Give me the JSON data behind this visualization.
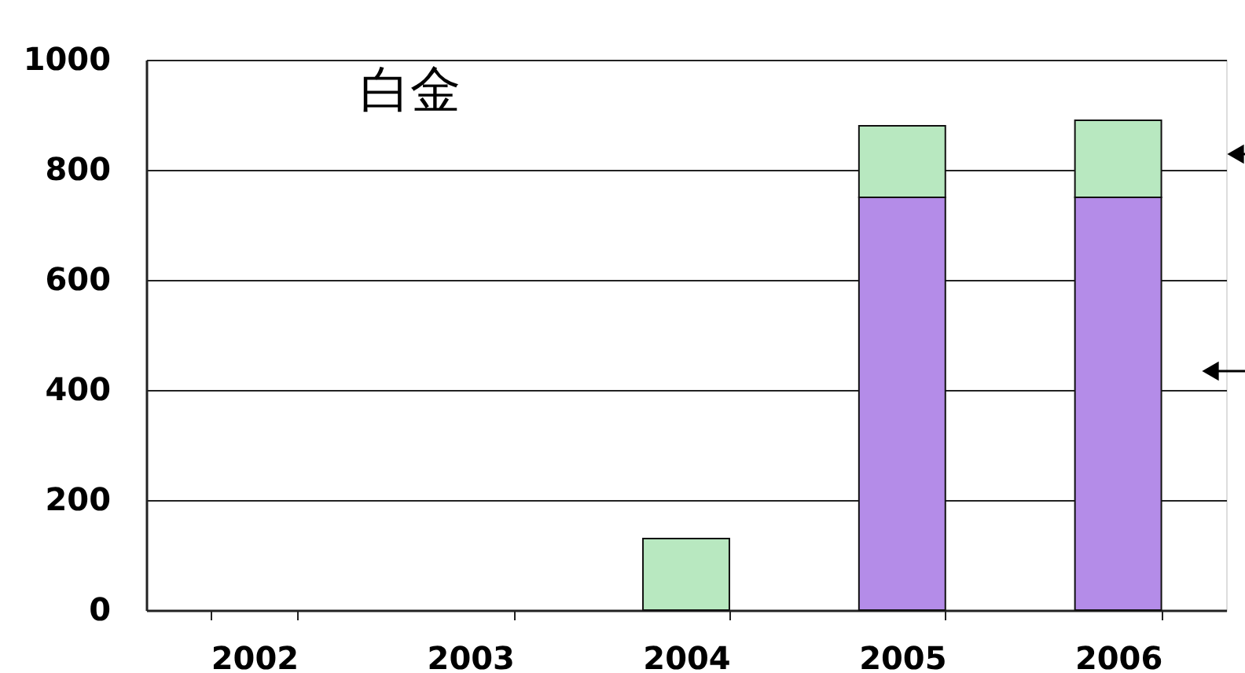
{
  "chart_data": {
    "type": "bar",
    "title": "白金",
    "categories": [
      "2002",
      "2003",
      "2004",
      "2005",
      "2006"
    ],
    "stacked": true,
    "series": [
      {
        "color": "#b48ce8",
        "values": [
          null,
          null,
          null,
          750,
          750
        ]
      },
      {
        "color": "#b8e8c0",
        "values": [
          null,
          null,
          130,
          130,
          140
        ]
      }
    ],
    "ylim": [
      0,
      1000
    ],
    "yticks": [
      0,
      200,
      400,
      600,
      800,
      1000
    ],
    "grid": "y",
    "legend": false
  }
}
